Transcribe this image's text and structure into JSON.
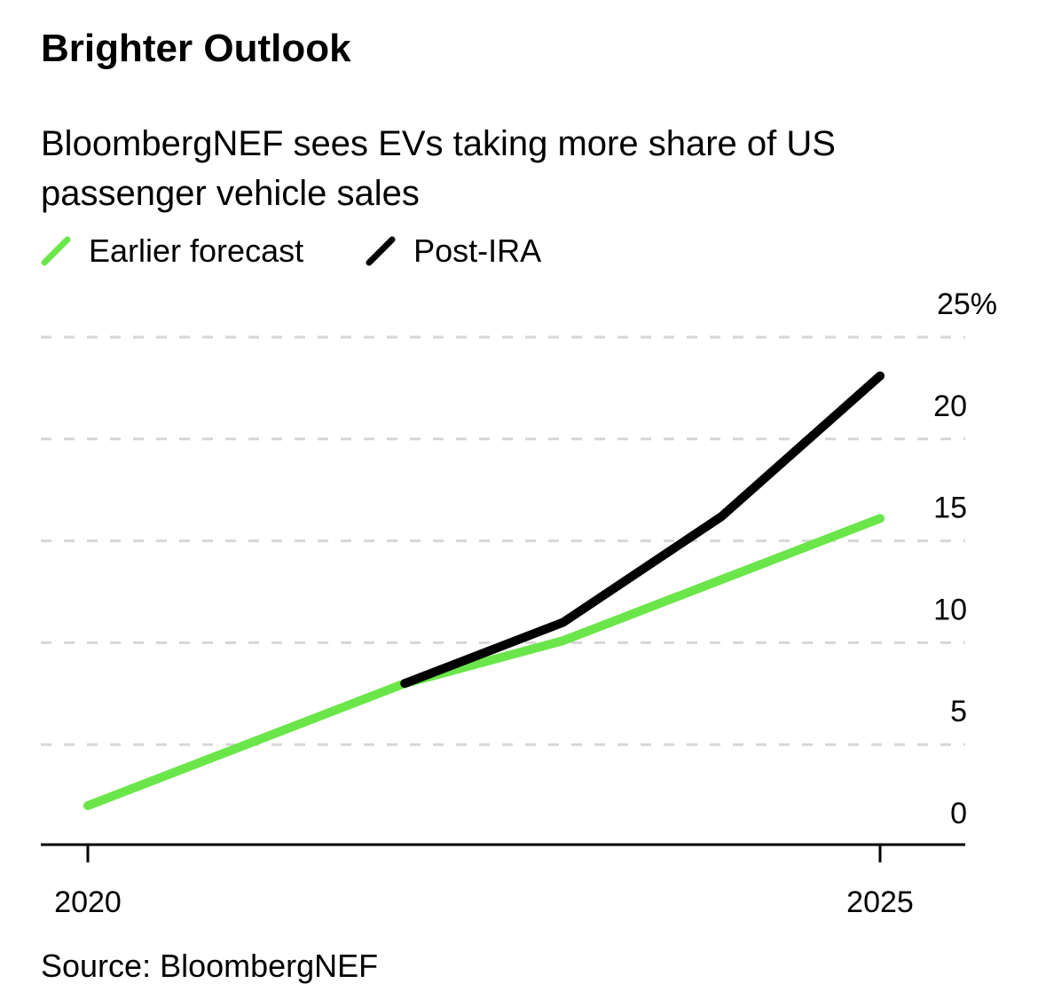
{
  "title": "Brighter Outlook",
  "subtitle": "BloombergNEF sees EVs taking more share of US passenger vehicle sales",
  "source": "Source: BloombergNEF",
  "chart_data": {
    "type": "line",
    "title": "Brighter Outlook",
    "subtitle": "BloombergNEF sees EVs taking more share of US passenger vehicle sales",
    "x": [
      2020,
      2021,
      2022,
      2023,
      2024,
      2025
    ],
    "xlim": [
      2020,
      2025
    ],
    "x_tick_labels": [
      "2020",
      "2025"
    ],
    "x_ticks": [
      2020,
      2025
    ],
    "ylim": [
      0,
      25
    ],
    "y_ticks": [
      0,
      5,
      10,
      15,
      20,
      25
    ],
    "y_tick_labels": [
      "0",
      "5",
      "10",
      "15",
      "20",
      "25%"
    ],
    "y_axis_position": "right",
    "grid": "horizontal dashed",
    "legend_placement": "top-left",
    "series": [
      {
        "name": "Earlier forecast",
        "color": "#6be64a",
        "x": [
          2020,
          2021,
          2022,
          2023,
          2024,
          2025
        ],
        "values": [
          2.0,
          5.0,
          8.0,
          10.1,
          13.1,
          16.1
        ]
      },
      {
        "name": "Post-IRA",
        "color": "#000000",
        "x": [
          2022,
          2023,
          2024,
          2025
        ],
        "values": [
          8.0,
          11.0,
          16.2,
          23.1
        ]
      }
    ]
  }
}
